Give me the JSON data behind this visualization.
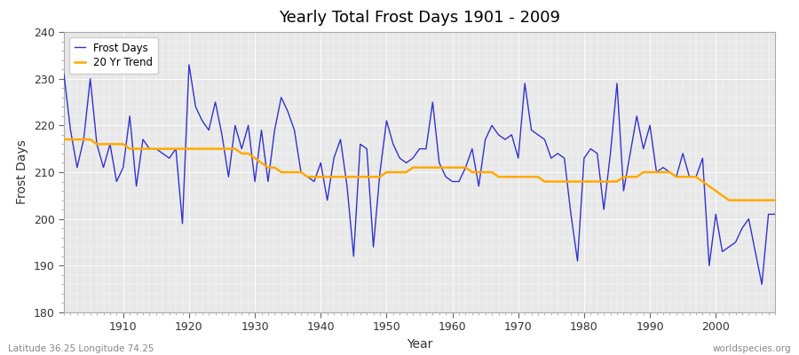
{
  "title": "Yearly Total Frost Days 1901 - 2009",
  "xlabel": "Year",
  "ylabel": "Frost Days",
  "xlim": [
    1901,
    2009
  ],
  "ylim": [
    180,
    240
  ],
  "yticks": [
    180,
    190,
    200,
    210,
    220,
    230,
    240
  ],
  "xticks": [
    1910,
    1920,
    1930,
    1940,
    1950,
    1960,
    1970,
    1980,
    1990,
    2000
  ],
  "background_color": "#e8e8e8",
  "line_color": "#3333cc",
  "trend_color": "#ffaa00",
  "footer_left": "Latitude 36.25 Longitude 74.25",
  "footer_right": "worldspecies.org",
  "years": [
    1901,
    1902,
    1903,
    1904,
    1905,
    1906,
    1907,
    1908,
    1909,
    1910,
    1911,
    1912,
    1913,
    1914,
    1915,
    1916,
    1917,
    1918,
    1919,
    1920,
    1921,
    1922,
    1923,
    1924,
    1925,
    1926,
    1927,
    1928,
    1929,
    1930,
    1931,
    1932,
    1933,
    1934,
    1935,
    1936,
    1937,
    1938,
    1939,
    1940,
    1941,
    1942,
    1943,
    1944,
    1945,
    1946,
    1947,
    1948,
    1949,
    1950,
    1951,
    1952,
    1953,
    1954,
    1955,
    1956,
    1957,
    1958,
    1959,
    1960,
    1961,
    1962,
    1963,
    1964,
    1965,
    1966,
    1967,
    1968,
    1969,
    1970,
    1971,
    1972,
    1973,
    1974,
    1975,
    1976,
    1977,
    1978,
    1979,
    1980,
    1981,
    1982,
    1983,
    1984,
    1985,
    1986,
    1987,
    1988,
    1989,
    1990,
    1991,
    1992,
    1993,
    1994,
    1995,
    1996,
    1997,
    1998,
    1999,
    2000,
    2001,
    2002,
    2003,
    2004,
    2005,
    2006,
    2007,
    2008,
    2009
  ],
  "frost_days": [
    231,
    219,
    211,
    217,
    230,
    216,
    211,
    216,
    208,
    211,
    222,
    207,
    217,
    215,
    215,
    214,
    213,
    215,
    199,
    233,
    224,
    221,
    219,
    225,
    218,
    209,
    220,
    215,
    220,
    208,
    219,
    208,
    219,
    226,
    223,
    219,
    210,
    209,
    208,
    212,
    204,
    213,
    217,
    207,
    192,
    216,
    215,
    194,
    210,
    221,
    216,
    213,
    212,
    213,
    215,
    215,
    225,
    212,
    209,
    208,
    208,
    211,
    215,
    207,
    217,
    220,
    218,
    217,
    218,
    213,
    229,
    219,
    218,
    217,
    213,
    214,
    213,
    201,
    191,
    213,
    215,
    214,
    202,
    214,
    229,
    206,
    214,
    222,
    215,
    220,
    210,
    211,
    210,
    209,
    214,
    209,
    209,
    213,
    190,
    201,
    193,
    194,
    195,
    198,
    200,
    193,
    186,
    201,
    201
  ],
  "trend_values": [
    217,
    217,
    217,
    217,
    217,
    216,
    216,
    216,
    216,
    216,
    215,
    215,
    215,
    215,
    215,
    215,
    215,
    215,
    215,
    215,
    215,
    215,
    215,
    215,
    215,
    215,
    215,
    214,
    214,
    213,
    212,
    211,
    211,
    210,
    210,
    210,
    210,
    209,
    209,
    209,
    209,
    209,
    209,
    209,
    209,
    209,
    209,
    209,
    209,
    210,
    210,
    210,
    210,
    211,
    211,
    211,
    211,
    211,
    211,
    211,
    211,
    211,
    210,
    210,
    210,
    210,
    209,
    209,
    209,
    209,
    209,
    209,
    209,
    208,
    208,
    208,
    208,
    208,
    208,
    208,
    208,
    208,
    208,
    208,
    208,
    209,
    209,
    209,
    210,
    210,
    210,
    210,
    210,
    209,
    209,
    209,
    209,
    208,
    207,
    206,
    205,
    204,
    204,
    204,
    204,
    204,
    204,
    204,
    204
  ]
}
